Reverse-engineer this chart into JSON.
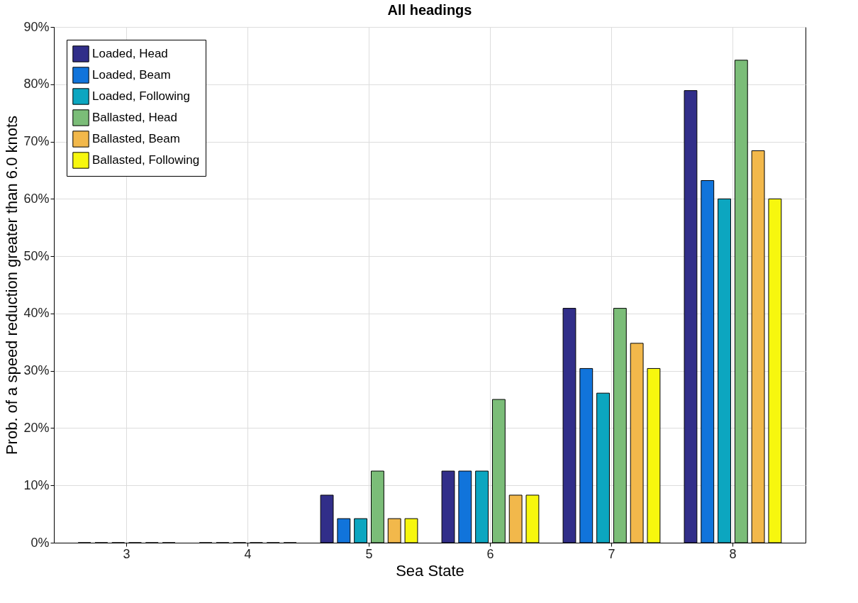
{
  "chart_data": {
    "type": "bar",
    "title": "All headings",
    "xlabel": "Sea State",
    "ylabel": "Prob. of a speed reduction greater than 6.0 knots",
    "categories": [
      "3",
      "4",
      "5",
      "6",
      "7",
      "8"
    ],
    "series": [
      {
        "name": "Loaded, Head",
        "color": "#312e89",
        "values": [
          0,
          0,
          8.3,
          12.5,
          40.9,
          78.9
        ]
      },
      {
        "name": "Loaded, Beam",
        "color": "#1174db",
        "values": [
          0,
          0,
          4.2,
          12.5,
          30.4,
          63.2
        ]
      },
      {
        "name": "Loaded, Following",
        "color": "#0ca6c0",
        "values": [
          0,
          0,
          4.2,
          12.5,
          26.1,
          60.0
        ]
      },
      {
        "name": "Ballasted, Head",
        "color": "#7bbd78",
        "values": [
          0,
          0,
          12.5,
          25.0,
          40.9,
          84.2
        ]
      },
      {
        "name": "Ballasted, Beam",
        "color": "#f2b84b",
        "values": [
          0,
          0,
          4.2,
          8.3,
          34.8,
          68.4
        ]
      },
      {
        "name": "Ballasted, Following",
        "color": "#f7f70e",
        "values": [
          0,
          0,
          4.2,
          8.3,
          30.4,
          60.0
        ]
      }
    ],
    "ylim": [
      0,
      90
    ],
    "yticks": [
      {
        "value": 0,
        "label": "0%"
      },
      {
        "value": 10,
        "label": "10%"
      },
      {
        "value": 20,
        "label": "20%"
      },
      {
        "value": 30,
        "label": "30%"
      },
      {
        "value": 40,
        "label": "40%"
      },
      {
        "value": 50,
        "label": "50%"
      },
      {
        "value": 60,
        "label": "60%"
      },
      {
        "value": 70,
        "label": "70%"
      },
      {
        "value": 80,
        "label": "80%"
      },
      {
        "value": 90,
        "label": "90%"
      }
    ],
    "grid": true,
    "legend": "top left"
  }
}
